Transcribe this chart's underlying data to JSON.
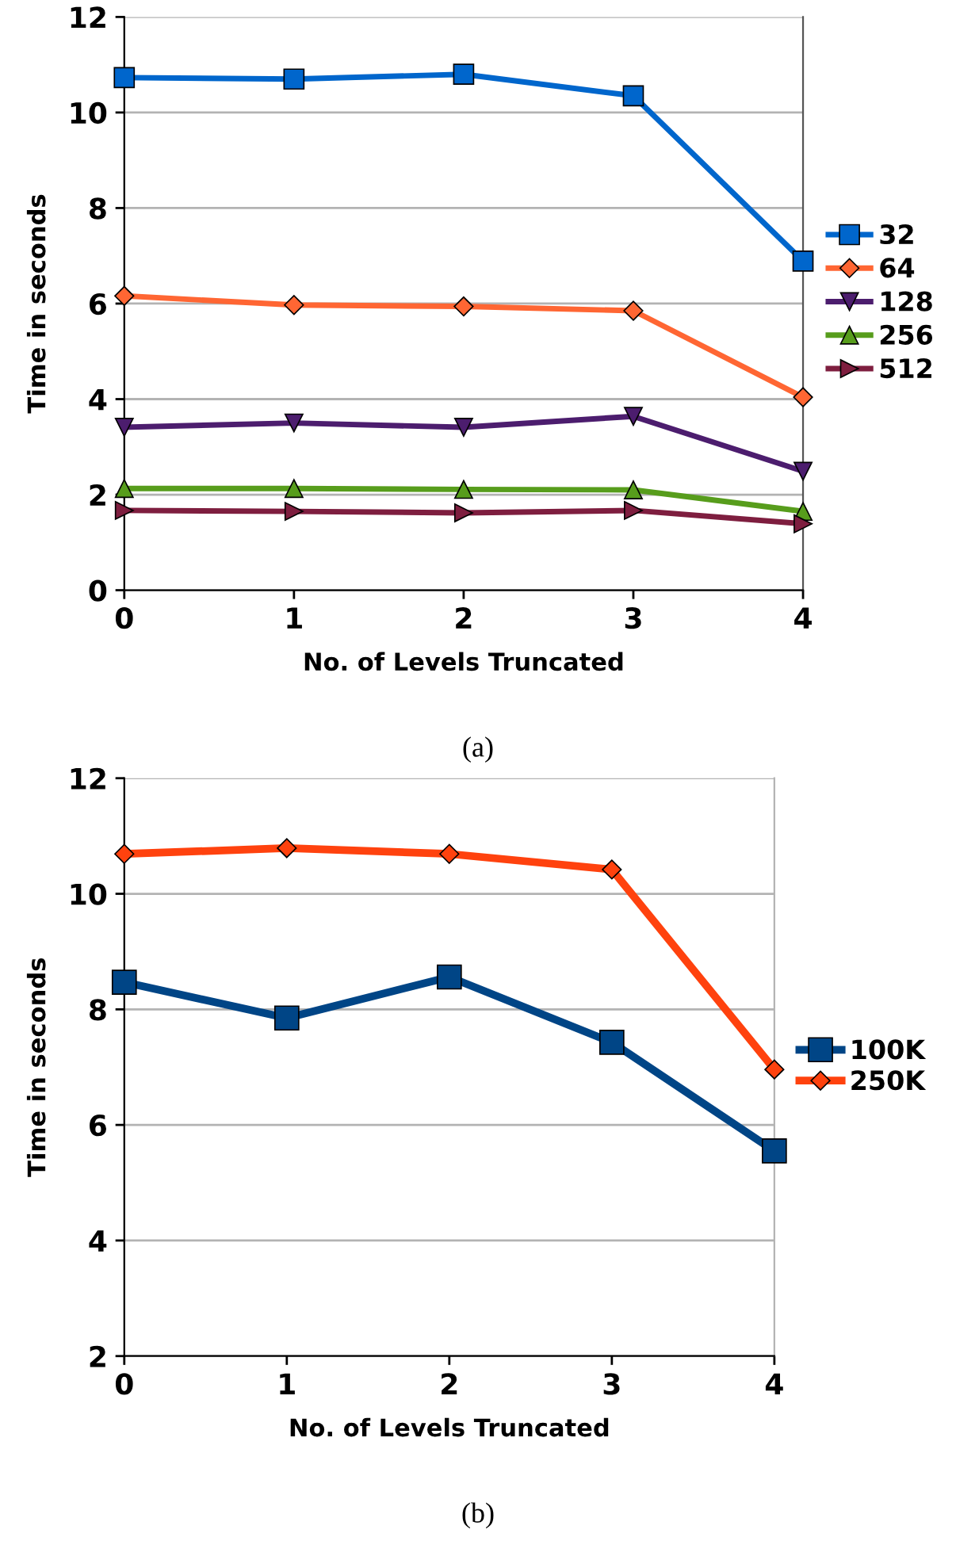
{
  "chart_data": [
    {
      "type": "line",
      "x": [
        0,
        1,
        2,
        3,
        4
      ],
      "xlim": [
        0,
        4
      ],
      "xticks": [
        0,
        1,
        2,
        3,
        4
      ],
      "ylim": [
        0,
        12
      ],
      "yticks": [
        0,
        2,
        4,
        6,
        8,
        10,
        12
      ],
      "xlabel": "No. of Levels Truncated",
      "ylabel": "Time in seconds",
      "grid": "y",
      "legend": "right",
      "annotations": [
        "(a)"
      ],
      "series": [
        {
          "name": "32",
          "color": "#0066cc",
          "marker": "square",
          "values": [
            10.73,
            10.7,
            10.8,
            10.35,
            6.89
          ]
        },
        {
          "name": "64",
          "color": "#ff6633",
          "marker": "diamond",
          "values": [
            6.16,
            5.97,
            5.94,
            5.85,
            4.04
          ]
        },
        {
          "name": "128",
          "color": "#4c1d6e",
          "marker": "triangle_down",
          "values": [
            3.41,
            3.5,
            3.41,
            3.64,
            2.49
          ]
        },
        {
          "name": "256",
          "color": "#579d1c",
          "marker": "triangle",
          "values": [
            2.13,
            2.13,
            2.11,
            2.1,
            1.65
          ]
        },
        {
          "name": "512",
          "color": "#7e1e3f",
          "marker": "triangle_right",
          "values": [
            1.67,
            1.65,
            1.62,
            1.67,
            1.39
          ]
        }
      ]
    },
    {
      "type": "line",
      "x": [
        0,
        1,
        2,
        3,
        4
      ],
      "xlim": [
        0,
        4
      ],
      "xticks": [
        0,
        1,
        2,
        3,
        4
      ],
      "ylim": [
        2,
        12
      ],
      "yticks": [
        2,
        4,
        6,
        8,
        10,
        12
      ],
      "xlabel": "No. of Levels Truncated",
      "ylabel": "Time in seconds",
      "grid": "y",
      "legend": "right",
      "annotations": [
        "(b)"
      ],
      "series": [
        {
          "name": "100K",
          "color": "#004586",
          "marker": "square",
          "values": [
            8.47,
            7.85,
            8.56,
            7.43,
            5.55
          ]
        },
        {
          "name": "250K",
          "color": "#ff420e",
          "marker": "diamond",
          "values": [
            10.69,
            10.79,
            10.69,
            10.42,
            6.96
          ]
        }
      ]
    }
  ]
}
